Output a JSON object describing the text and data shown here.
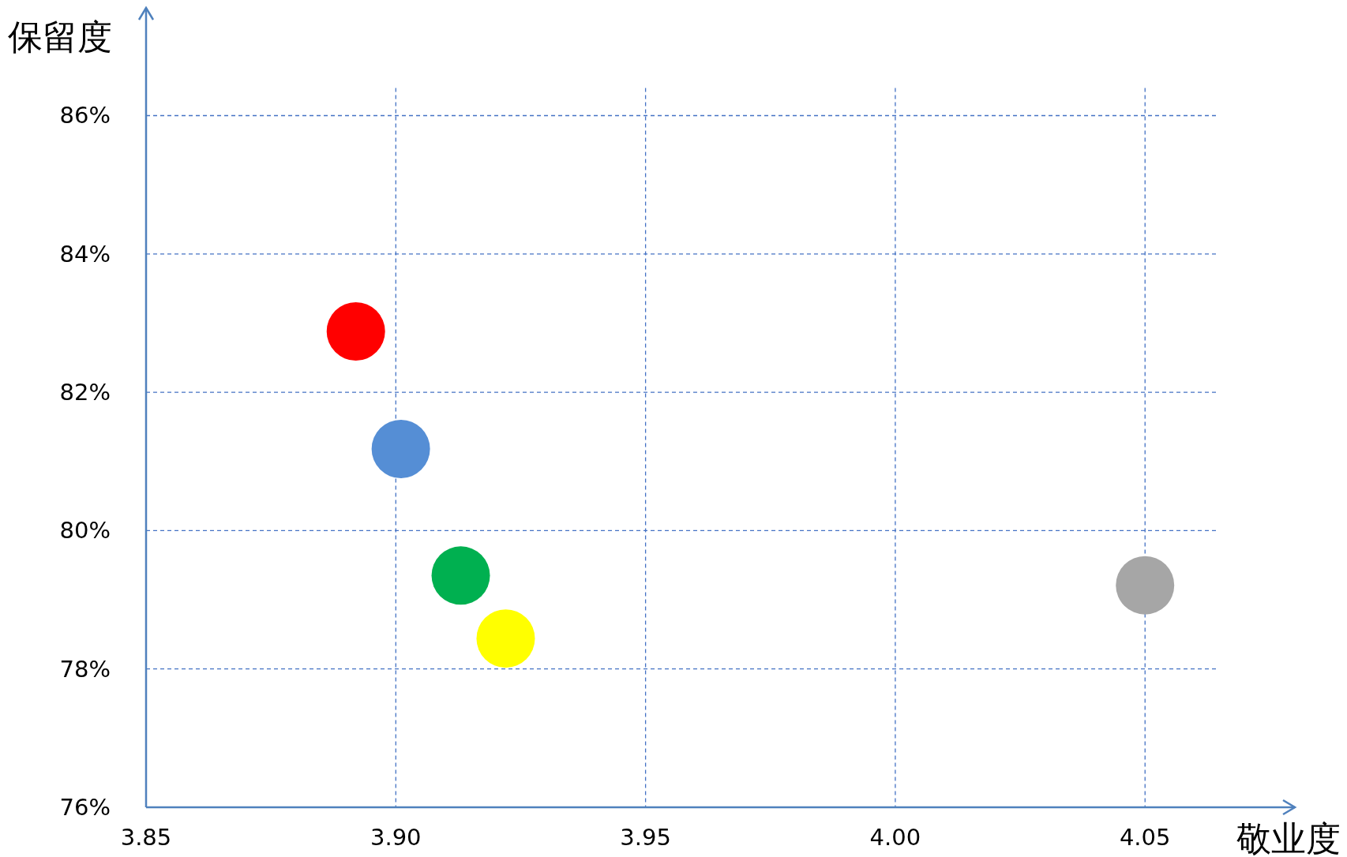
{
  "chart_data": {
    "type": "scatter",
    "xlabel": "敬业度",
    "ylabel": "保留度",
    "x": [
      3.892,
      3.901,
      3.913,
      3.922,
      4.05
    ],
    "values": [
      82.88,
      81.18,
      79.35,
      78.44,
      79.21
    ],
    "colors": [
      "#ff0000",
      "#558ed5",
      "#00b050",
      "#ffff00",
      "#a6a6a6"
    ],
    "xlim": [
      3.85,
      4.08
    ],
    "ylim": [
      76,
      87.5
    ],
    "xticks": [
      3.85,
      {
        "value": 3.9,
        "label": "3.90"
      },
      3.95,
      {
        "value": 4.0,
        "label": "4.00"
      },
      4.05
    ],
    "yticks": [
      {
        "value": 76,
        "label": "76%"
      },
      {
        "value": 78,
        "label": "78%"
      },
      {
        "value": 80,
        "label": "80%"
      },
      {
        "value": 82,
        "label": "82%"
      },
      {
        "value": 84,
        "label": "84%"
      },
      {
        "value": 86,
        "label": "86%"
      }
    ],
    "grid": true,
    "marker": "circle"
  }
}
